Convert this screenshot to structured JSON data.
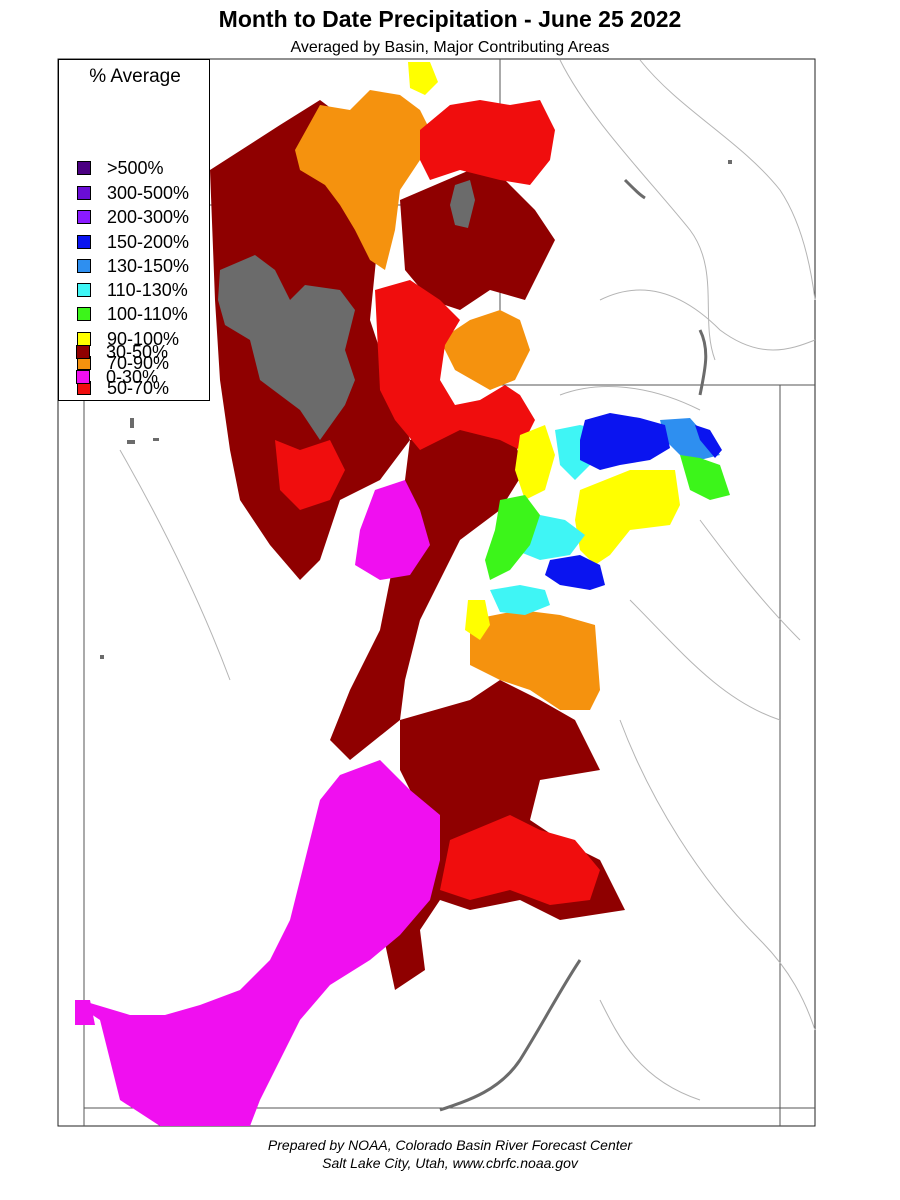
{
  "title": "Month to Date Precipitation - June 25 2022",
  "subtitle": "Averaged by Basin, Major Contributing Areas",
  "legend": {
    "title": "% Average",
    "items": [
      {
        "label": ">500%",
        "color": "#4b0082"
      },
      {
        "label": "300-500%",
        "color": "#6a0dd6"
      },
      {
        "label": "200-300%",
        "color": "#8a1aff"
      },
      {
        "label": "150-200%",
        "color": "#0a14f0"
      },
      {
        "label": "130-150%",
        "color": "#2e8ff0"
      },
      {
        "label": "110-130%",
        "color": "#3ff5f5"
      },
      {
        "label": "100-110%",
        "color": "#3cf51a"
      },
      {
        "label": "90-100%",
        "color": "#ffff00"
      },
      {
        "label": "70-90%",
        "color": "#f5920e"
      },
      {
        "label": "50-70%",
        "color": "#f00d0d"
      },
      {
        "label": "30-50%",
        "color": "#8f0000"
      },
      {
        "label": "0-30%",
        "color": "#f00ff0"
      }
    ]
  },
  "colors": {
    "no_data": "#6b6b6b",
    "border": "#555555",
    "river": "#b4b4b4"
  },
  "footer": {
    "line1": "Prepared by NOAA, Colorado Basin River Forecast Center",
    "line2": "Salt Lake City, Utah, www.cbrfc.noaa.gov"
  }
}
